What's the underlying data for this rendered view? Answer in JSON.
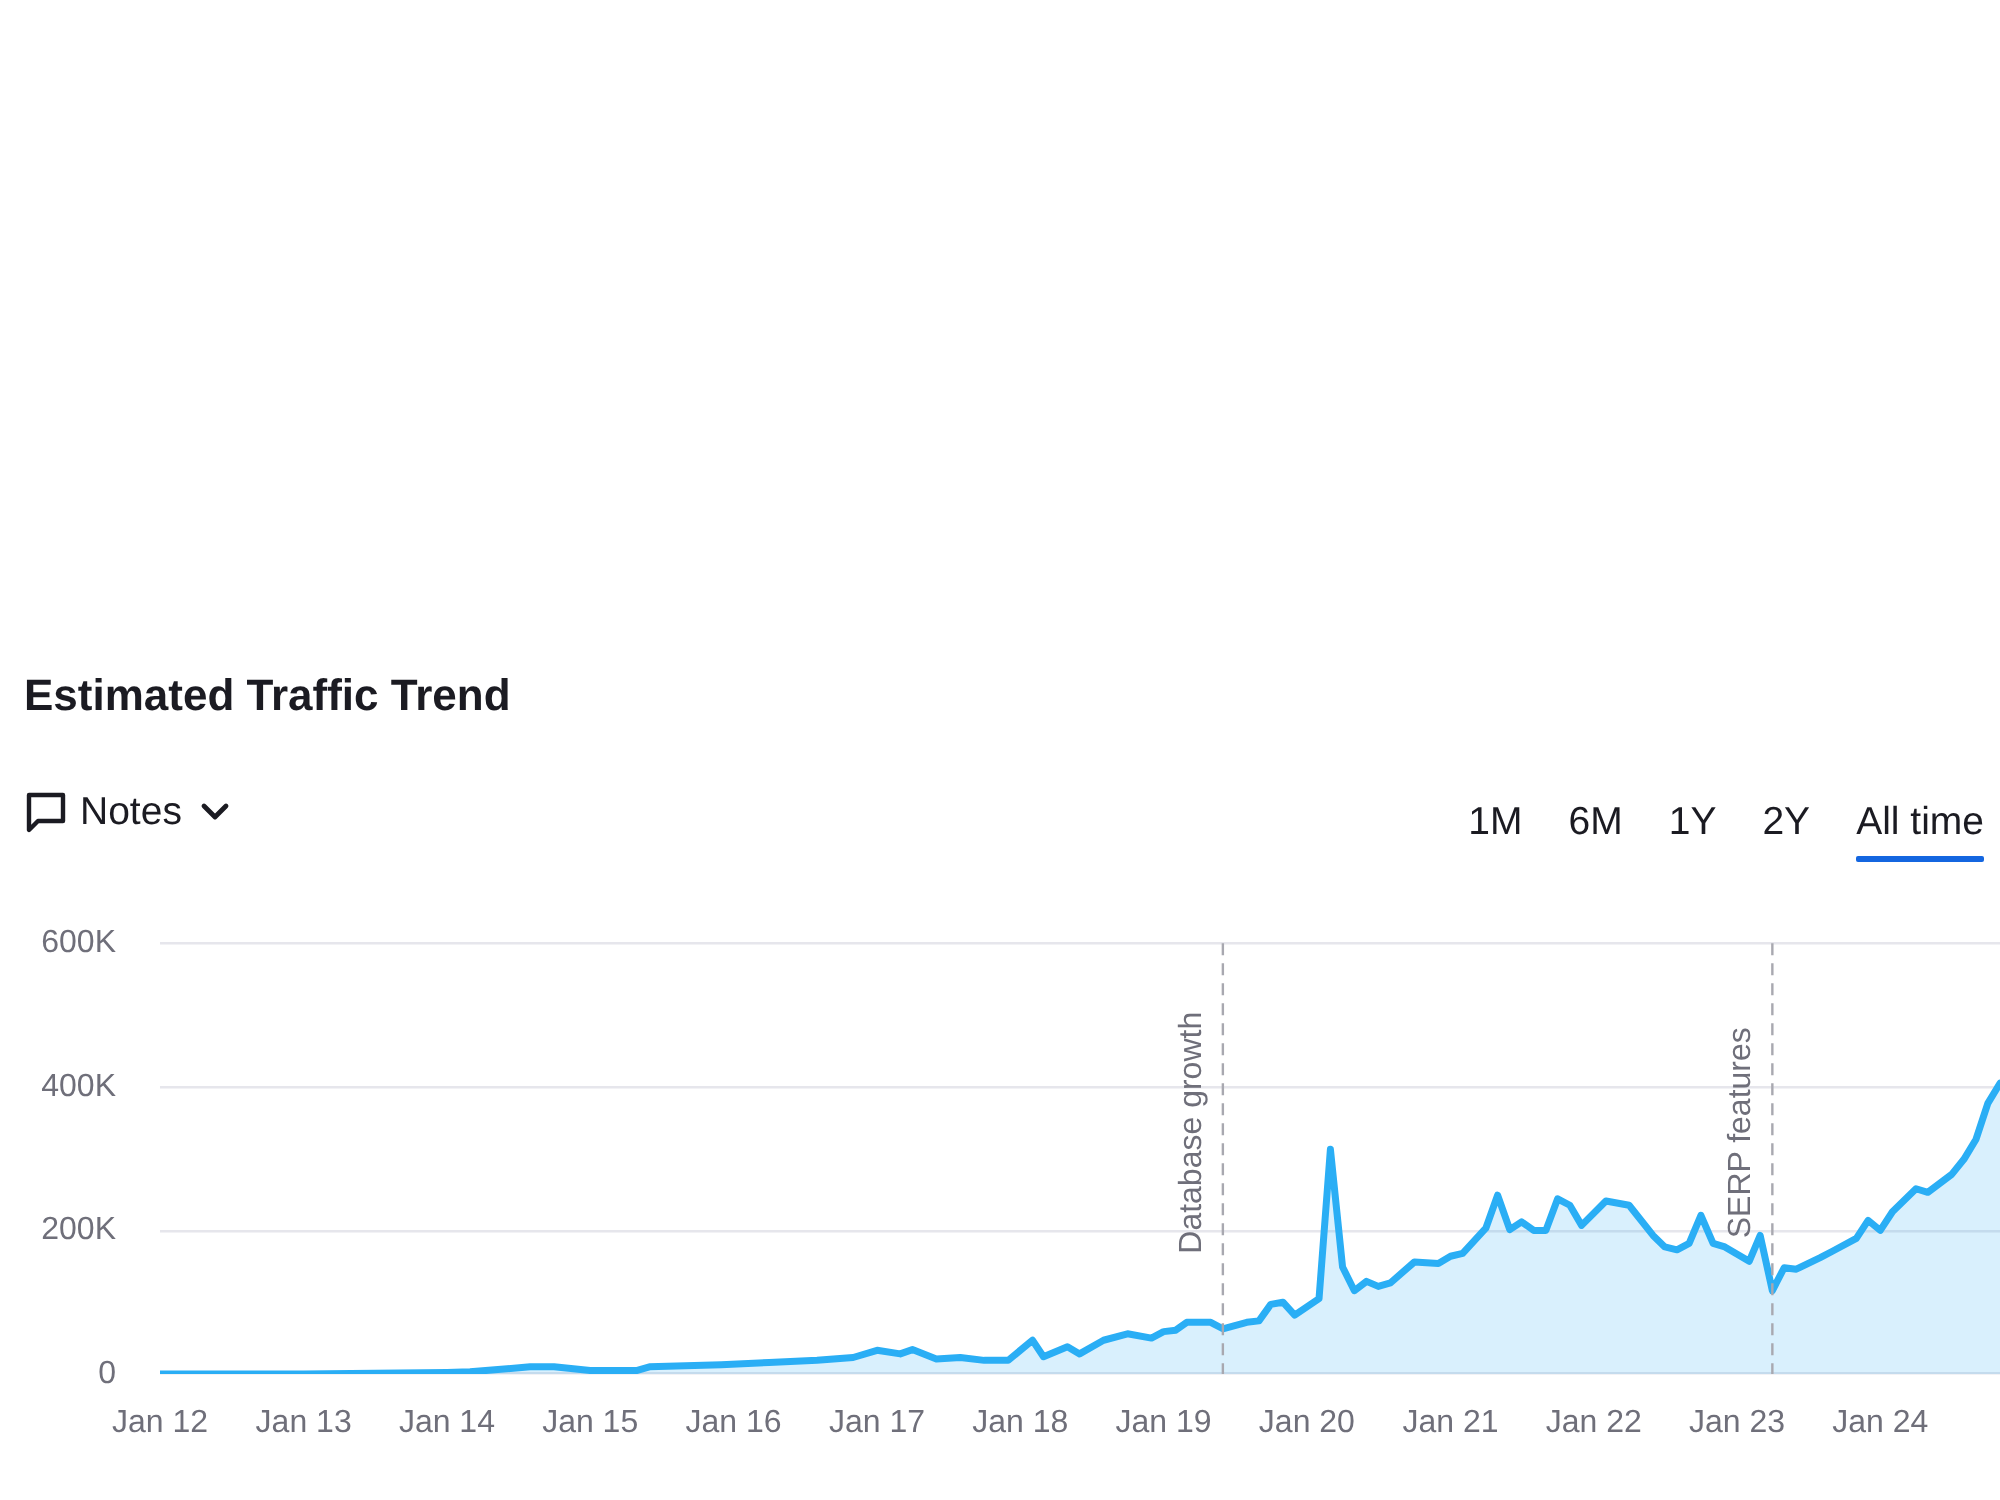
{
  "chart_data": {
    "type": "area",
    "title": "Estimated Traffic Trend",
    "annotations": [
      "Notes",
      "1M",
      "6M",
      "1Y",
      "2Y",
      "All time"
    ],
    "x": [
      "2012-01",
      "2012-07",
      "2013-01",
      "2013-07",
      "2014-01",
      "2014-03",
      "2014-08",
      "2014-10",
      "2015-01",
      "2015-05",
      "2015-06",
      "2015-12",
      "2016-04",
      "2016-08",
      "2016-11",
      "2017-01",
      "2017-03",
      "2017-04",
      "2017-06",
      "2017-08",
      "2017-10",
      "2017-12",
      "2018-02",
      "2018-03",
      "2018-05",
      "2018-06",
      "2018-08",
      "2018-10",
      "2018-12",
      "2019-01",
      "2019-02",
      "2019-03",
      "2019-05",
      "2019-06",
      "2019-08",
      "2019-09",
      "2019-10",
      "2019-11",
      "2019-12",
      "2020-02",
      "2020-03",
      "2020-04",
      "2020-05",
      "2020-06",
      "2020-07",
      "2020-08",
      "2020-10",
      "2020-12",
      "2021-01",
      "2021-02",
      "2021-04",
      "2021-05",
      "2021-06",
      "2021-07",
      "2021-08",
      "2021-09",
      "2021-10",
      "2021-11",
      "2021-12",
      "2022-02",
      "2022-04",
      "2022-06",
      "2022-07",
      "2022-08",
      "2022-09",
      "2022-10",
      "2022-11",
      "2022-12",
      "2023-02",
      "2023-03",
      "2023-04",
      "2023-05",
      "2023-06",
      "2023-08",
      "2023-09",
      "2023-11",
      "2023-12",
      "2024-01",
      "2024-02",
      "2024-04",
      "2024-05",
      "2024-07",
      "2024-08",
      "2024-09",
      "2024-10",
      "2024-11"
    ],
    "series": [
      {
        "color": "#2aaef5",
        "values": [
          0,
          0,
          0,
          1000,
          2000,
          3000,
          10000,
          10000,
          5000,
          5000,
          10000,
          13000,
          16000,
          19000,
          23000,
          33000,
          28000,
          34000,
          21000,
          23000,
          19000,
          19000,
          47000,
          24000,
          38000,
          28000,
          47000,
          56000,
          50000,
          59000,
          61000,
          72000,
          72000,
          63000,
          72000,
          74000,
          97000,
          100000,
          82000,
          105000,
          313000,
          149000,
          116000,
          129000,
          122000,
          127000,
          156000,
          154000,
          164000,
          168000,
          203000,
          249000,
          201000,
          212000,
          200000,
          200000,
          244000,
          235000,
          207000,
          241000,
          235000,
          193000,
          177000,
          173000,
          182000,
          221000,
          182000,
          177000,
          157000,
          193000,
          116000,
          148000,
          146000,
          162000,
          171000,
          189000,
          214000,
          200000,
          226000,
          258000,
          253000,
          278000,
          299000,
          327000,
          377000,
          405000
        ]
      }
    ],
    "xlim": [
      "2012-01-01",
      "2024-11-01"
    ],
    "xticks": [
      {
        "value": "2012-01",
        "label": "Jan 12"
      },
      {
        "value": "2013-01",
        "label": "Jan 13"
      },
      {
        "value": "2014-01",
        "label": "Jan 14"
      },
      {
        "value": "2015-01",
        "label": "Jan 15"
      },
      {
        "value": "2016-01",
        "label": "Jan 16"
      },
      {
        "value": "2017-01",
        "label": "Jan 17"
      },
      {
        "value": "2018-01",
        "label": "Jan 18"
      },
      {
        "value": "2019-01",
        "label": "Jan 19"
      },
      {
        "value": "2020-01",
        "label": "Jan 20"
      },
      {
        "value": "2021-01",
        "label": "Jan 21"
      },
      {
        "value": "2022-01",
        "label": "Jan 22"
      },
      {
        "value": "2023-01",
        "label": "Jan 23"
      },
      {
        "value": "2024-01",
        "label": "Jan 24"
      }
    ],
    "ylim": [
      0,
      600000
    ],
    "yticks": [
      0,
      {
        "value": 200000,
        "label": "200K"
      },
      {
        "value": 400000,
        "label": "400K"
      },
      {
        "value": 600000,
        "label": "600K"
      }
    ],
    "grid": "y",
    "marker": "none",
    "ref_lines": [
      {
        "axis": "x",
        "value": "2019-06",
        "label": "Database growth",
        "color": "#a8a8b0",
        "line_style": "dashed"
      },
      {
        "axis": "x",
        "value": "2023-04",
        "label": "SERP features",
        "color": "#a8a8b0",
        "line_style": "dashed"
      }
    ]
  }
}
